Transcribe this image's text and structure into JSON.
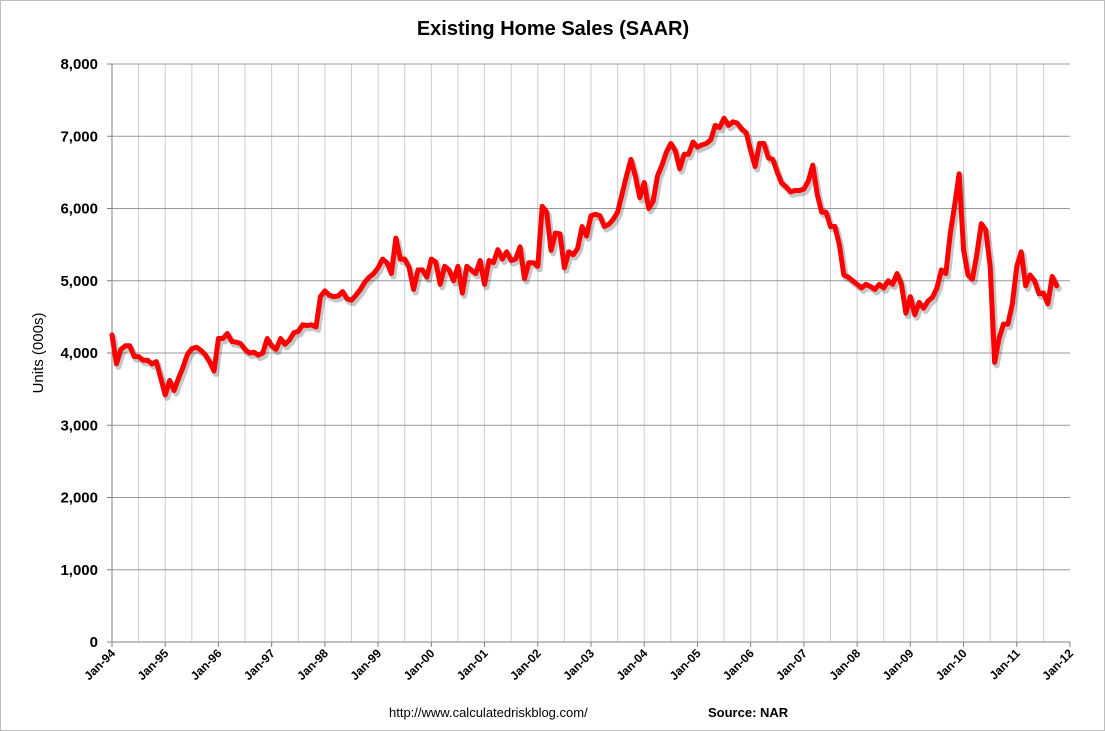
{
  "chart_data": {
    "type": "line",
    "title": "Existing Home Sales (SAAR)",
    "ylabel": "Units (000s)",
    "xlabel": "",
    "ylim": [
      0,
      8000
    ],
    "yticks": [
      0,
      1000,
      2000,
      3000,
      4000,
      5000,
      6000,
      7000,
      8000
    ],
    "ytick_labels": [
      "0",
      "1,000",
      "2,000",
      "3,000",
      "4,000",
      "5,000",
      "6,000",
      "7,000",
      "8,000"
    ],
    "xticks": [
      "Jan-94",
      "Jan-95",
      "Jan-96",
      "Jan-97",
      "Jan-98",
      "Jan-99",
      "Jan-00",
      "Jan-01",
      "Jan-02",
      "Jan-03",
      "Jan-04",
      "Jan-05",
      "Jan-06",
      "Jan-07",
      "Jan-08",
      "Jan-09",
      "Jan-10",
      "Jan-11",
      "Jan-12"
    ],
    "grid": true,
    "legend": "none",
    "colors": {
      "line": "#ff0000",
      "grid": "#999999",
      "vgrid": "#c9cdd6",
      "plot_bg": "#ffffff"
    },
    "series": [
      {
        "start": "Jan-94",
        "frequency": "monthly",
        "values": [
          4250,
          3850,
          4050,
          4100,
          4100,
          3950,
          3950,
          3900,
          3900,
          3850,
          3880,
          3650,
          3420,
          3620,
          3480,
          3650,
          3800,
          3980,
          4060,
          4080,
          4040,
          3980,
          3880,
          3750,
          4200,
          4200,
          4270,
          4160,
          4150,
          4130,
          4050,
          4000,
          4010,
          3970,
          4000,
          4200,
          4100,
          4050,
          4200,
          4120,
          4180,
          4280,
          4300,
          4390,
          4380,
          4390,
          4360,
          4780,
          4860,
          4800,
          4780,
          4790,
          4850,
          4750,
          4730,
          4800,
          4880,
          4980,
          5050,
          5100,
          5180,
          5300,
          5250,
          5100,
          5590,
          5300,
          5300,
          5180,
          4880,
          5150,
          5150,
          5050,
          5300,
          5260,
          4950,
          5200,
          5150,
          5000,
          5200,
          4830,
          5200,
          5150,
          5100,
          5280,
          4950,
          5280,
          5250,
          5430,
          5300,
          5400,
          5280,
          5300,
          5470,
          5030,
          5250,
          5250,
          5200,
          6030,
          5950,
          5420,
          5660,
          5650,
          5180,
          5400,
          5360,
          5450,
          5750,
          5620,
          5900,
          5920,
          5900,
          5750,
          5780,
          5850,
          5950,
          6200,
          6450,
          6680,
          6450,
          6150,
          6360,
          6000,
          6100,
          6450,
          6600,
          6780,
          6900,
          6800,
          6550,
          6750,
          6750,
          6920,
          6850,
          6880,
          6900,
          6950,
          7150,
          7120,
          7250,
          7150,
          7200,
          7180,
          7100,
          7050,
          6800,
          6580,
          6900,
          6900,
          6700,
          6680,
          6500,
          6350,
          6300,
          6230,
          6250,
          6250,
          6270,
          6380,
          6600,
          6200,
          5950,
          5950,
          5750,
          5750,
          5500,
          5080,
          5050,
          5000,
          4950,
          4900,
          4950,
          4920,
          4880,
          4950,
          4900,
          5000,
          4950,
          5100,
          4950,
          4550,
          4780,
          4530,
          4700,
          4620,
          4720,
          4770,
          4900,
          5150,
          5100,
          5650,
          6050,
          6480,
          5430,
          5080,
          5020,
          5370,
          5790,
          5700,
          5200,
          3870,
          4200,
          4400,
          4400,
          4680,
          5200,
          5400,
          4930,
          5080,
          5000,
          4820,
          4830,
          4680,
          5060,
          4930
        ]
      }
    ]
  },
  "footer": {
    "url": "http://www.calculatedriskblog.com/",
    "source": "Source: NAR"
  }
}
